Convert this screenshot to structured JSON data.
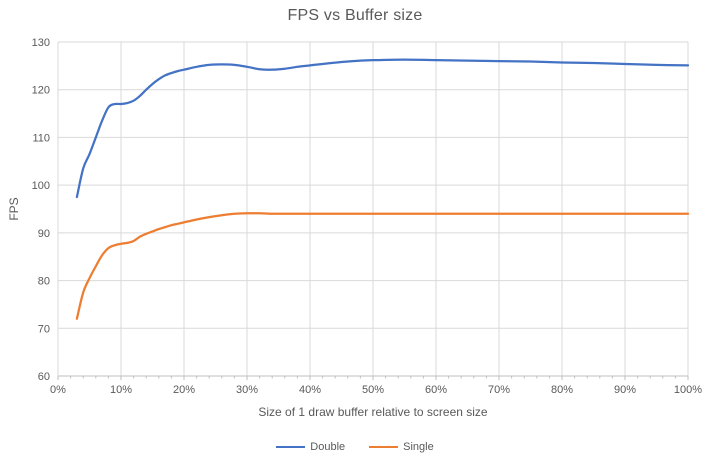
{
  "chart_data": {
    "type": "line",
    "title": "FPS vs Buffer size",
    "xlabel": "Size of 1 draw buffer relative to screen size",
    "ylabel": "FPS",
    "xlim": [
      0,
      100
    ],
    "ylim": [
      60,
      130
    ],
    "grid": true,
    "legend_position": "bottom",
    "x_ticks": [
      {
        "value": 0,
        "label": "0%"
      },
      {
        "value": 10,
        "label": "10%"
      },
      {
        "value": 20,
        "label": "20%"
      },
      {
        "value": 30,
        "label": "30%"
      },
      {
        "value": 40,
        "label": "40%"
      },
      {
        "value": 50,
        "label": "50%"
      },
      {
        "value": 60,
        "label": "60%"
      },
      {
        "value": 70,
        "label": "70%"
      },
      {
        "value": 80,
        "label": "80%"
      },
      {
        "value": 90,
        "label": "90%"
      },
      {
        "value": 100,
        "label": "100%"
      }
    ],
    "x_minor_tick_step": 2,
    "y_ticks": [
      60,
      70,
      80,
      90,
      100,
      110,
      120,
      130
    ],
    "series": [
      {
        "name": "Double",
        "color": "#4472C4",
        "points": [
          [
            3,
            97.5
          ],
          [
            4,
            103.5
          ],
          [
            5,
            106.5
          ],
          [
            6,
            110
          ],
          [
            7,
            113.5
          ],
          [
            8,
            116.3
          ],
          [
            9,
            117
          ],
          [
            10,
            117
          ],
          [
            11,
            117.2
          ],
          [
            12,
            117.7
          ],
          [
            13,
            118.7
          ],
          [
            14,
            120
          ],
          [
            15,
            121.2
          ],
          [
            16,
            122.2
          ],
          [
            17,
            123
          ],
          [
            18,
            123.5
          ],
          [
            19,
            123.9
          ],
          [
            20,
            124.2
          ],
          [
            22,
            124.8
          ],
          [
            24,
            125.2
          ],
          [
            26,
            125.3
          ],
          [
            28,
            125.2
          ],
          [
            30,
            124.8
          ],
          [
            32,
            124.3
          ],
          [
            34,
            124.2
          ],
          [
            36,
            124.4
          ],
          [
            38,
            124.8
          ],
          [
            40,
            125.1
          ],
          [
            42,
            125.4
          ],
          [
            45,
            125.8
          ],
          [
            48,
            126.1
          ],
          [
            50,
            126.2
          ],
          [
            55,
            126.3
          ],
          [
            60,
            126.2
          ],
          [
            65,
            126.1
          ],
          [
            70,
            126
          ],
          [
            75,
            125.9
          ],
          [
            80,
            125.7
          ],
          [
            85,
            125.6
          ],
          [
            90,
            125.4
          ],
          [
            95,
            125.2
          ],
          [
            100,
            125.1
          ]
        ]
      },
      {
        "name": "Single",
        "color": "#ED7D31",
        "points": [
          [
            3,
            72
          ],
          [
            4,
            77.5
          ],
          [
            5,
            80.5
          ],
          [
            6,
            83
          ],
          [
            7,
            85.3
          ],
          [
            8,
            86.8
          ],
          [
            9,
            87.4
          ],
          [
            10,
            87.7
          ],
          [
            11,
            87.9
          ],
          [
            12,
            88.3
          ],
          [
            13,
            89.2
          ],
          [
            14,
            89.8
          ],
          [
            15,
            90.3
          ],
          [
            16,
            90.8
          ],
          [
            17,
            91.2
          ],
          [
            18,
            91.6
          ],
          [
            19,
            91.9
          ],
          [
            20,
            92.2
          ],
          [
            22,
            92.8
          ],
          [
            24,
            93.3
          ],
          [
            26,
            93.7
          ],
          [
            28,
            94
          ],
          [
            30,
            94.1
          ],
          [
            32,
            94.1
          ],
          [
            34,
            94
          ],
          [
            36,
            94
          ],
          [
            40,
            94
          ],
          [
            45,
            94
          ],
          [
            50,
            94
          ],
          [
            55,
            94
          ],
          [
            60,
            94
          ],
          [
            65,
            94
          ],
          [
            70,
            94
          ],
          [
            75,
            94
          ],
          [
            80,
            94
          ],
          [
            85,
            94
          ],
          [
            90,
            94
          ],
          [
            95,
            94
          ],
          [
            100,
            94
          ]
        ]
      }
    ],
    "colors": {
      "background": "#FFFFFF",
      "gridline": "#D9D9D9",
      "axis_line": "#BFBFBF",
      "text": "#595959"
    }
  }
}
